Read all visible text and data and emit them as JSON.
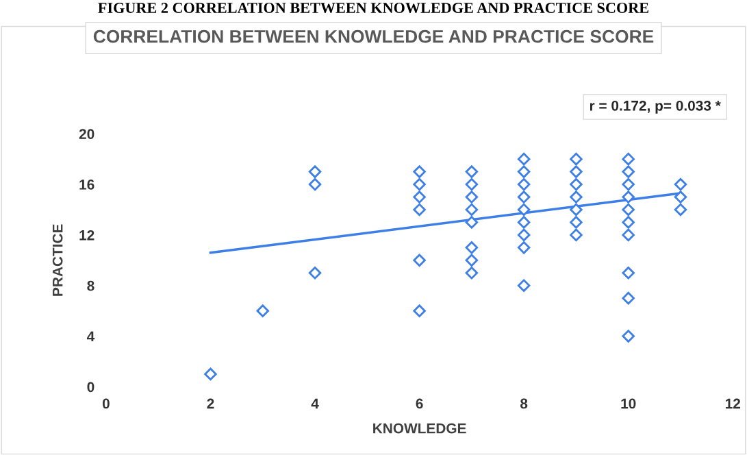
{
  "chart_data": {
    "type": "scatter",
    "title": "CORRELATION BETWEEN KNOWLEDGE AND PRACTICE SCORE",
    "xlabel": "KNOWLEDGE",
    "ylabel": "PRACTICE",
    "annotations": [
      "FIGURE 2 CORRELATION BETWEEN KNOWLEDGE AND PRACTICE SCORE",
      "r = 0.172, p= 0.033 *"
    ],
    "series": [
      {
        "color": "#3d7fe6",
        "marker": "diamond",
        "x": [
          2,
          3,
          4,
          4,
          4,
          6,
          6,
          6,
          6,
          6,
          6,
          7,
          7,
          7,
          7,
          7,
          7,
          7,
          7,
          8,
          8,
          8,
          8,
          8,
          8,
          8,
          8,
          8,
          9,
          9,
          9,
          9,
          9,
          9,
          9,
          10,
          10,
          10,
          10,
          10,
          10,
          10,
          10,
          10,
          10,
          11,
          11,
          11
        ],
        "values": [
          1,
          6,
          9,
          16,
          17,
          6,
          10,
          14,
          15,
          16,
          17,
          9,
          10,
          11,
          13,
          14,
          15,
          16,
          17,
          8,
          11,
          12,
          13,
          14,
          15,
          16,
          17,
          18,
          12,
          13,
          14,
          15,
          16,
          17,
          18,
          4,
          7,
          9,
          12,
          13,
          14,
          15,
          16,
          17,
          18,
          14,
          15,
          16
        ]
      },
      {
        "type": "line",
        "color": "#3d7fe6",
        "x": [
          2,
          11
        ],
        "values": [
          10.6,
          15.3
        ]
      }
    ],
    "xlim": [
      0,
      12
    ],
    "xticks": [
      0,
      2,
      4,
      6,
      8,
      10,
      12
    ],
    "ylim": [
      0,
      20
    ],
    "yticks": [
      0,
      4,
      8,
      12,
      16,
      20
    ],
    "grid": false,
    "legend": false
  }
}
